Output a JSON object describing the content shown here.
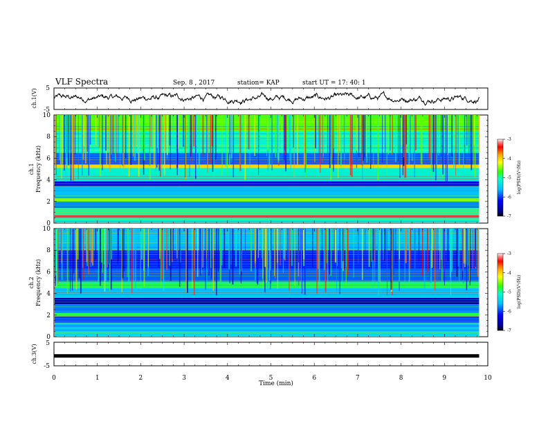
{
  "header": {
    "title": "VLF Spectra",
    "date": "Sep. 8  , 2017",
    "station": "station= KAP",
    "start_ut": "start  UT  =   17: 40: 1"
  },
  "chart_data": [
    {
      "type": "line",
      "name": "ch1-voltage",
      "ylabel": "ch.1(V)",
      "ytick_labels": [
        "5",
        "-5"
      ],
      "ylim": [
        -5,
        5
      ],
      "xlim": [
        0,
        10
      ],
      "data_end_min": 9.8,
      "series": [
        {
          "color": "#000000",
          "description_only": false
        }
      ]
    },
    {
      "type": "heatmap",
      "name": "ch1-spectrogram",
      "ylabel_line1": "ch.1",
      "ylabel_line2": "Frequency  (kHz)",
      "yticks": [
        "0",
        "2",
        "4",
        "6",
        "8",
        "10"
      ],
      "ylim": [
        0,
        10
      ],
      "xlim": [
        0,
        9.8
      ],
      "colorbar": {
        "label": "log(PSD)(V²/Hz)",
        "ticks": [
          "-3",
          "-4",
          "-5",
          "-6",
          "-7"
        ],
        "range": [
          -7,
          -3
        ]
      },
      "bands_khz": [
        {
          "from": 0.0,
          "to": 0.5,
          "level": -5.2
        },
        {
          "from": 0.5,
          "to": 0.75,
          "level": -3.3
        },
        {
          "from": 0.75,
          "to": 1.4,
          "level": -5.0
        },
        {
          "from": 1.4,
          "to": 2.0,
          "level": -5.8
        },
        {
          "from": 2.0,
          "to": 2.3,
          "level": -4.5
        },
        {
          "from": 2.3,
          "to": 3.4,
          "level": -5.6
        },
        {
          "from": 3.4,
          "to": 3.9,
          "level": -6.3
        },
        {
          "from": 3.9,
          "to": 5.1,
          "level": -5.2
        },
        {
          "from": 5.1,
          "to": 5.4,
          "level": -4.0
        },
        {
          "from": 5.4,
          "to": 6.5,
          "level": -5.9
        },
        {
          "from": 6.5,
          "to": 8.5,
          "level": -5.1
        },
        {
          "from": 8.5,
          "to": 10.0,
          "level": -4.6
        }
      ]
    },
    {
      "type": "heatmap",
      "name": "ch2-spectrogram",
      "ylabel_line1": "ch.2",
      "ylabel_line2": "Frequency  (kHz)",
      "yticks": [
        "0",
        "2",
        "4",
        "6",
        "8",
        "10"
      ],
      "ylim": [
        0,
        10
      ],
      "xlim": [
        0,
        9.8
      ],
      "colorbar": {
        "label": "log(PSD)(V²/Hz)",
        "ticks": [
          "-3",
          "-4",
          "-5",
          "-6",
          "-7"
        ],
        "range": [
          -7,
          -3
        ]
      },
      "bands_khz": [
        {
          "from": 0.0,
          "to": 0.5,
          "level": -5.4
        },
        {
          "from": 0.5,
          "to": 1.3,
          "level": -5.6
        },
        {
          "from": 1.3,
          "to": 1.9,
          "level": -6.0
        },
        {
          "from": 1.9,
          "to": 2.2,
          "level": -4.8
        },
        {
          "from": 2.2,
          "to": 3.0,
          "level": -5.8
        },
        {
          "from": 3.0,
          "to": 3.6,
          "level": -6.6
        },
        {
          "from": 3.6,
          "to": 4.5,
          "level": -5.5
        },
        {
          "from": 4.5,
          "to": 5.1,
          "level": -4.8
        },
        {
          "from": 5.1,
          "to": 6.3,
          "level": -5.9
        },
        {
          "from": 6.3,
          "to": 8.0,
          "level": -6.1
        },
        {
          "from": 8.0,
          "to": 10.0,
          "level": -5.6
        }
      ]
    },
    {
      "type": "line",
      "name": "ch3-voltage",
      "ylabel": "ch.3(V)",
      "ytick_labels": [
        "5",
        "-5"
      ],
      "ylim": [
        -5,
        5
      ],
      "xlim": [
        0,
        10
      ],
      "constant_value": -0.8,
      "data_end_min": 9.8
    }
  ],
  "x_axis": {
    "label": "Time  (min)",
    "ticks": [
      "0",
      "1",
      "2",
      "3",
      "4",
      "5",
      "6",
      "7",
      "8",
      "9",
      "10"
    ],
    "range": [
      0,
      10
    ]
  }
}
